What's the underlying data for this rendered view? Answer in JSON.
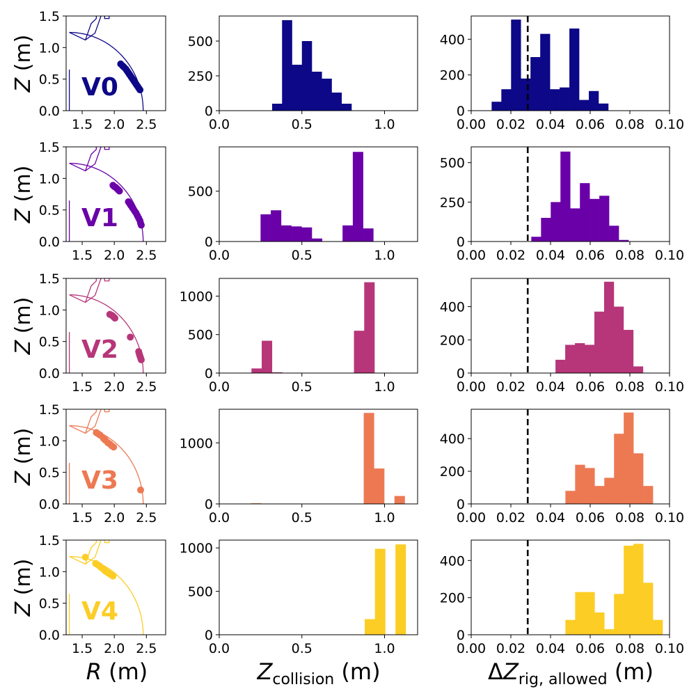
{
  "figure": {
    "ylabel_var": "Z",
    "ylabel_unit": " (m)",
    "xlabels": {
      "col0": {
        "var": "R",
        "unit": " (m)"
      },
      "col1": {
        "var": "Z",
        "sub": "collision",
        "unit": " (m)"
      },
      "col2": {
        "prefix": "Δ",
        "var": "Z",
        "sub": "rig, allowed",
        "unit": " (m)"
      }
    }
  },
  "threshold_line_x": 0.0285,
  "chart_data": [
    {
      "row": 0,
      "label": "V0",
      "color": "#0d0887",
      "wall": {
        "type": "line",
        "xlim": [
          1.25,
          2.8
        ],
        "ylim": [
          0,
          1.5
        ],
        "xticks": [
          "1.5",
          "2.0",
          "2.5"
        ],
        "yticks": [
          "0.0",
          "0.5",
          "1.0",
          "1.5"
        ],
        "boundary_end_R": 2.45,
        "points": [
          [
            2.1,
            0.74
          ],
          [
            2.13,
            0.71
          ],
          [
            2.15,
            0.69
          ],
          [
            2.18,
            0.66
          ],
          [
            2.2,
            0.63
          ],
          [
            2.22,
            0.6
          ],
          [
            2.24,
            0.57
          ],
          [
            2.26,
            0.54
          ],
          [
            2.28,
            0.51
          ],
          [
            2.3,
            0.48
          ],
          [
            2.32,
            0.45
          ],
          [
            2.34,
            0.42
          ],
          [
            2.36,
            0.39
          ],
          [
            2.38,
            0.36
          ],
          [
            2.4,
            0.33
          ]
        ]
      },
      "zcol": {
        "type": "bar",
        "xlim": [
          0,
          1.2
        ],
        "ylim": [
          0,
          680
        ],
        "xticks": [
          "0.0",
          "0.5",
          "1.0"
        ],
        "yticks": [
          {
            "v": 0,
            "t": "0"
          },
          {
            "v": 250,
            "t": "250"
          },
          {
            "v": 500,
            "t": "500"
          }
        ],
        "binw": 0.06,
        "bins": [
          0.32,
          0.38,
          0.44,
          0.5,
          0.56,
          0.62,
          0.68,
          0.74
        ],
        "values": [
          50,
          650,
          330,
          500,
          280,
          230,
          130,
          50
        ]
      },
      "dz": {
        "type": "bar",
        "xlim": [
          0,
          0.1
        ],
        "ylim": [
          0,
          530
        ],
        "xticks": [
          "0.00",
          "0.02",
          "0.04",
          "0.06",
          "0.08",
          "0.10"
        ],
        "yticks": [
          {
            "v": 0,
            "t": "0"
          },
          {
            "v": 200,
            "t": "200"
          },
          {
            "v": 400,
            "t": "400"
          }
        ],
        "binw": 0.0049,
        "bins": [
          0.0103,
          0.0152,
          0.0201,
          0.025,
          0.0299,
          0.0348,
          0.0397,
          0.0446,
          0.0495,
          0.0544,
          0.0593,
          0.0642
        ],
        "values": [
          50,
          120,
          510,
          180,
          300,
          430,
          120,
          130,
          460,
          60,
          110,
          40
        ]
      }
    },
    {
      "row": 1,
      "label": "V1",
      "color": "#6a00a8",
      "wall": {
        "type": "line",
        "xlim": [
          1.25,
          2.8
        ],
        "ylim": [
          0,
          1.5
        ],
        "xticks": [
          "1.5",
          "2.0",
          "2.5"
        ],
        "yticks": [
          "0.0",
          "0.5",
          "1.0",
          "1.5"
        ],
        "boundary_end_R": 2.45,
        "points": [
          [
            1.98,
            0.89
          ],
          [
            2.0,
            0.87
          ],
          [
            2.02,
            0.86
          ],
          [
            2.04,
            0.84
          ],
          [
            2.06,
            0.82
          ],
          [
            2.08,
            0.8
          ],
          [
            2.22,
            0.63
          ],
          [
            2.24,
            0.6
          ],
          [
            2.26,
            0.57
          ],
          [
            2.28,
            0.54
          ],
          [
            2.3,
            0.51
          ],
          [
            2.32,
            0.48
          ],
          [
            2.34,
            0.45
          ],
          [
            2.36,
            0.41
          ],
          [
            2.38,
            0.37
          ],
          [
            2.4,
            0.33
          ],
          [
            2.41,
            0.29
          ],
          [
            2.42,
            0.26
          ]
        ]
      },
      "zcol": {
        "type": "bar",
        "xlim": [
          0,
          1.2
        ],
        "ylim": [
          0,
          940
        ],
        "xticks": [
          "0.0",
          "0.5",
          "1.0"
        ],
        "yticks": [
          {
            "v": 0,
            "t": "0"
          },
          {
            "v": 500,
            "t": "500"
          }
        ],
        "binw": 0.062,
        "bins": [
          0.25,
          0.312,
          0.374,
          0.436,
          0.498,
          0.56,
          0.622,
          0.684,
          0.746,
          0.808,
          0.87
        ],
        "values": [
          270,
          310,
          160,
          150,
          140,
          30,
          0,
          0,
          160,
          890,
          130
        ]
      },
      "dz": {
        "type": "bar",
        "xlim": [
          0,
          0.1
        ],
        "ylim": [
          0,
          600
        ],
        "xticks": [
          "0.00",
          "0.02",
          "0.04",
          "0.06",
          "0.08",
          "0.10"
        ],
        "yticks": [
          {
            "v": 0,
            "t": "0"
          },
          {
            "v": 250,
            "t": "250"
          },
          {
            "v": 500,
            "t": "500"
          }
        ],
        "binw": 0.0049,
        "bins": [
          0.0303,
          0.0352,
          0.0401,
          0.045,
          0.0499,
          0.0548,
          0.0597,
          0.0646,
          0.0695,
          0.0744,
          0.0793
        ],
        "values": [
          30,
          150,
          250,
          570,
          210,
          370,
          270,
          290,
          100,
          10,
          0
        ]
      }
    },
    {
      "row": 2,
      "label": "V2",
      "color": "#b63679",
      "wall": {
        "type": "line",
        "xlim": [
          1.25,
          2.8
        ],
        "ylim": [
          0,
          1.5
        ],
        "xticks": [
          "1.5",
          "2.0",
          "2.5"
        ],
        "yticks": [
          "0.0",
          "0.5",
          "1.0",
          "1.5"
        ],
        "boundary_end_R": 2.45,
        "points": [
          [
            1.93,
            0.93
          ],
          [
            1.95,
            0.92
          ],
          [
            1.97,
            0.91
          ],
          [
            1.99,
            0.89
          ],
          [
            2.01,
            0.87
          ],
          [
            2.25,
            0.57
          ],
          [
            2.38,
            0.34
          ],
          [
            2.39,
            0.3
          ],
          [
            2.4,
            0.27
          ],
          [
            2.41,
            0.24
          ],
          [
            2.42,
            0.21
          ]
        ]
      },
      "zcol": {
        "type": "bar",
        "xlim": [
          0,
          1.2
        ],
        "ylim": [
          0,
          1230
        ],
        "xticks": [
          "0.0",
          "0.5",
          "1.0"
        ],
        "yticks": [
          {
            "v": 0,
            "t": "0"
          },
          {
            "v": 500,
            "t": "500"
          },
          {
            "v": 1000,
            "t": "1000"
          }
        ],
        "binw": 0.062,
        "bins": [
          0.195,
          0.257,
          0.319,
          0.381,
          0.443,
          0.505,
          0.567,
          0.629,
          0.691,
          0.753,
          0.815,
          0.877
        ],
        "values": [
          60,
          420,
          10,
          0,
          0,
          0,
          0,
          0,
          0,
          0,
          550,
          1180
        ]
      },
      "dz": {
        "type": "bar",
        "xlim": [
          0,
          0.1
        ],
        "ylim": [
          0,
          570
        ],
        "xticks": [
          "0.00",
          "0.02",
          "0.04",
          "0.06",
          "0.08",
          "0.10"
        ],
        "yticks": [
          {
            "v": 0,
            "t": "0"
          },
          {
            "v": 200,
            "t": "200"
          },
          {
            "v": 400,
            "t": "400"
          }
        ],
        "binw": 0.0049,
        "bins": [
          0.0425,
          0.0474,
          0.0523,
          0.0572,
          0.0621,
          0.067,
          0.0719,
          0.0768,
          0.0817,
          0.0866
        ],
        "values": [
          80,
          170,
          180,
          170,
          370,
          550,
          400,
          260,
          40,
          0
        ]
      }
    },
    {
      "row": 3,
      "label": "V3",
      "color": "#ed7953",
      "wall": {
        "type": "line",
        "xlim": [
          1.25,
          2.8
        ],
        "ylim": [
          0,
          1.5
        ],
        "xticks": [
          "1.5",
          "2.0",
          "2.5"
        ],
        "yticks": [
          "0.0",
          "0.5",
          "1.0",
          "1.5"
        ],
        "boundary_end_R": 2.45,
        "points": [
          [
            1.72,
            1.13
          ],
          [
            1.75,
            1.11
          ],
          [
            1.78,
            1.09
          ],
          [
            1.83,
            1.04
          ],
          [
            1.86,
            1.01
          ],
          [
            1.9,
            0.97
          ],
          [
            1.93,
            0.95
          ],
          [
            1.96,
            0.92
          ],
          [
            1.99,
            0.9
          ],
          [
            2.41,
            0.22
          ]
        ]
      },
      "zcol": {
        "type": "bar",
        "xlim": [
          0,
          1.2
        ],
        "ylim": [
          0,
          1550
        ],
        "xticks": [
          "0.0",
          "0.5",
          "1.0"
        ],
        "yticks": [
          {
            "v": 0,
            "t": "0"
          },
          {
            "v": 1000,
            "t": "1000"
          }
        ],
        "binw": 0.062,
        "bins": [
          0.192,
          0.254,
          0.316,
          0.378,
          0.44,
          0.502,
          0.564,
          0.626,
          0.688,
          0.75,
          0.812,
          0.874,
          0.936,
          0.998,
          1.06
        ],
        "values": [
          10,
          0,
          0,
          0,
          0,
          0,
          0,
          0,
          0,
          0,
          0,
          1490,
          580,
          0,
          130
        ]
      },
      "dz": {
        "type": "bar",
        "xlim": [
          0,
          0.1
        ],
        "ylim": [
          0,
          580
        ],
        "xticks": [
          "0.00",
          "0.02",
          "0.04",
          "0.06",
          "0.08",
          "0.10"
        ],
        "yticks": [
          {
            "v": 0,
            "t": "0"
          },
          {
            "v": 200,
            "t": "200"
          },
          {
            "v": 400,
            "t": "400"
          }
        ],
        "binw": 0.0049,
        "bins": [
          0.0475,
          0.0524,
          0.0573,
          0.0622,
          0.0671,
          0.072,
          0.0769,
          0.0818,
          0.0867,
          0.0916
        ],
        "values": [
          80,
          240,
          220,
          110,
          160,
          430,
          560,
          310,
          110,
          0
        ]
      }
    },
    {
      "row": 4,
      "label": "V4",
      "color": "#fccd25",
      "wall": {
        "type": "line",
        "xlim": [
          1.25,
          2.8
        ],
        "ylim": [
          0,
          1.5
        ],
        "xticks": [
          "1.5",
          "2.0",
          "2.5"
        ],
        "yticks": [
          "0.0",
          "0.5",
          "1.0",
          "1.5"
        ],
        "boundary_end_R": 2.45,
        "points": [
          [
            1.55,
            1.23
          ],
          [
            1.71,
            1.13
          ],
          [
            1.74,
            1.11
          ],
          [
            1.77,
            1.09
          ],
          [
            1.8,
            1.06
          ],
          [
            1.83,
            1.04
          ],
          [
            1.86,
            1.01
          ],
          [
            1.89,
            0.99
          ],
          [
            1.92,
            0.97
          ],
          [
            1.95,
            0.95
          ],
          [
            1.98,
            0.93
          ]
        ]
      },
      "zcol": {
        "type": "bar",
        "xlim": [
          0,
          1.2
        ],
        "ylim": [
          0,
          1090
        ],
        "xticks": [
          "0.0",
          "0.5",
          "1.0"
        ],
        "yticks": [
          {
            "v": 0,
            "t": "0"
          },
          {
            "v": 500,
            "t": "500"
          },
          {
            "v": 1000,
            "t": "1000"
          }
        ],
        "binw": 0.062,
        "bins": [
          0.88,
          0.942,
          1.004,
          1.066
        ],
        "values": [
          180,
          990,
          0,
          1040
        ]
      },
      "dz": {
        "type": "bar",
        "xlim": [
          0,
          0.1
        ],
        "ylim": [
          0,
          510
        ],
        "xticks": [
          "0.00",
          "0.02",
          "0.04",
          "0.06",
          "0.08",
          "0.10"
        ],
        "yticks": [
          {
            "v": 0,
            "t": "0"
          },
          {
            "v": 200,
            "t": "200"
          },
          {
            "v": 400,
            "t": "400"
          }
        ],
        "binw": 0.0049,
        "bins": [
          0.0475,
          0.0524,
          0.0573,
          0.0622,
          0.0671,
          0.072,
          0.0769,
          0.0818,
          0.0867,
          0.0916,
          0.0965
        ],
        "values": [
          80,
          230,
          230,
          120,
          30,
          220,
          480,
          490,
          280,
          80,
          0
        ]
      }
    }
  ]
}
